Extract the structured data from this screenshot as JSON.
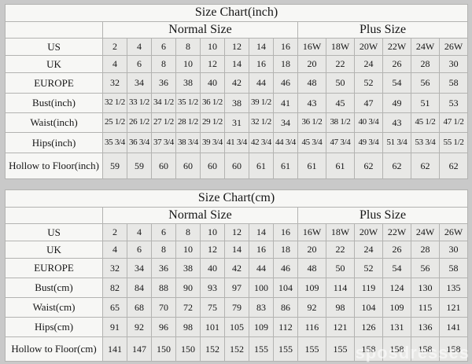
{
  "watermark": "sposdresses",
  "colors": {
    "page_bg": "#c9c9c9",
    "cell_bg": "#e8e8e6",
    "header_bg": "#f7f7f5",
    "border": "#b3b3b1",
    "text": "#161616"
  },
  "chart_data": [
    {
      "type": "table",
      "title": "Size Chart(inch)",
      "column_groups": [
        {
          "label": "",
          "span": 1
        },
        {
          "label": "Normal Size",
          "span": 8
        },
        {
          "label": "Plus Size",
          "span": 6
        }
      ],
      "rows": [
        {
          "label": "US",
          "cells": [
            "2",
            "4",
            "6",
            "8",
            "10",
            "12",
            "14",
            "16",
            "16W",
            "18W",
            "20W",
            "22W",
            "24W",
            "26W"
          ]
        },
        {
          "label": "UK",
          "cells": [
            "4",
            "6",
            "8",
            "10",
            "12",
            "14",
            "16",
            "18",
            "20",
            "22",
            "24",
            "26",
            "28",
            "30"
          ]
        },
        {
          "label": "EUROPE",
          "cells": [
            "32",
            "34",
            "36",
            "38",
            "40",
            "42",
            "44",
            "46",
            "48",
            "50",
            "52",
            "54",
            "56",
            "58"
          ]
        },
        {
          "label": "Bust(inch)",
          "cells": [
            "32 1/2",
            "33 1/2",
            "34 1/2",
            "35 1/2",
            "36 1/2",
            "38",
            "39 1/2",
            "41",
            "43",
            "45",
            "47",
            "49",
            "51",
            "53"
          ]
        },
        {
          "label": "Waist(inch)",
          "cells": [
            "25 1/2",
            "26 1/2",
            "27 1/2",
            "28 1/2",
            "29 1/2",
            "31",
            "32 1/2",
            "34",
            "36 1/2",
            "38 1/2",
            "40 3/4",
            "43",
            "45 1/2",
            "47 1/2"
          ]
        },
        {
          "label": "Hips(inch)",
          "cells": [
            "35 3/4",
            "36 3/4",
            "37 3/4",
            "38 3/4",
            "39 3/4",
            "41 3/4",
            "42 3/4",
            "44 3/4",
            "45 3/4",
            "47 3/4",
            "49 3/4",
            "51 3/4",
            "53 3/4",
            "55 1/2"
          ]
        },
        {
          "label": "Hollow to Floor(inch)",
          "cells": [
            "59",
            "59",
            "60",
            "60",
            "60",
            "60",
            "61",
            "61",
            "61",
            "61",
            "62",
            "62",
            "62",
            "62"
          ]
        }
      ]
    },
    {
      "type": "table",
      "title": "Size Chart(cm)",
      "column_groups": [
        {
          "label": "",
          "span": 1
        },
        {
          "label": "Normal Size",
          "span": 8
        },
        {
          "label": "Plus Size",
          "span": 6
        }
      ],
      "rows": [
        {
          "label": "US",
          "cells": [
            "2",
            "4",
            "6",
            "8",
            "10",
            "12",
            "14",
            "16",
            "16W",
            "18W",
            "20W",
            "22W",
            "24W",
            "26W"
          ]
        },
        {
          "label": "UK",
          "cells": [
            "4",
            "6",
            "8",
            "10",
            "12",
            "14",
            "16",
            "18",
            "20",
            "22",
            "24",
            "26",
            "28",
            "30"
          ]
        },
        {
          "label": "EUROPE",
          "cells": [
            "32",
            "34",
            "36",
            "38",
            "40",
            "42",
            "44",
            "46",
            "48",
            "50",
            "52",
            "54",
            "56",
            "58"
          ]
        },
        {
          "label": "Bust(cm)",
          "cells": [
            "82",
            "84",
            "88",
            "90",
            "93",
            "97",
            "100",
            "104",
            "109",
            "114",
            "119",
            "124",
            "130",
            "135"
          ]
        },
        {
          "label": "Waist(cm)",
          "cells": [
            "65",
            "68",
            "70",
            "72",
            "75",
            "79",
            "83",
            "86",
            "92",
            "98",
            "104",
            "109",
            "115",
            "121"
          ]
        },
        {
          "label": "Hips(cm)",
          "cells": [
            "91",
            "92",
            "96",
            "98",
            "101",
            "105",
            "109",
            "112",
            "116",
            "121",
            "126",
            "131",
            "136",
            "141"
          ]
        },
        {
          "label": "Hollow to Floor(cm)",
          "cells": [
            "141",
            "147",
            "150",
            "150",
            "152",
            "152",
            "155",
            "155",
            "155",
            "155",
            "158",
            "158",
            "158",
            "158"
          ]
        }
      ]
    }
  ]
}
